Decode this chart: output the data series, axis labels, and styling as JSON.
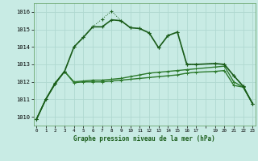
{
  "title": "Graphe pression niveau de la mer (hPa)",
  "background_color": "#c8ebe4",
  "grid_color": "#b0d8d0",
  "line_color_dark": "#1a5c1a",
  "line_color_med": "#2d7a2d",
  "xlim": [
    -0.3,
    23.3
  ],
  "ylim": [
    1009.5,
    1016.5
  ],
  "yticks": [
    1010,
    1011,
    1012,
    1013,
    1014,
    1015,
    1016
  ],
  "xtick_labels": [
    "0",
    "1",
    "2",
    "3",
    "4",
    "5",
    "6",
    "7",
    "8",
    "9",
    "10",
    "11",
    "12",
    "13",
    "14",
    "15",
    "16",
    "17",
    "",
    "19",
    "20",
    "21",
    "22",
    "23"
  ],
  "xtick_positions": [
    0,
    1,
    2,
    3,
    4,
    5,
    6,
    7,
    8,
    9,
    10,
    11,
    12,
    13,
    14,
    15,
    16,
    17,
    18,
    19,
    20,
    21,
    22,
    23
  ],
  "curve1_x": [
    0,
    1,
    2,
    3,
    4,
    5,
    6,
    7,
    8,
    9,
    10,
    11,
    12,
    13,
    14,
    15,
    16,
    17,
    19,
    20,
    21,
    22,
    23
  ],
  "curve1_y": [
    1009.85,
    1011.0,
    1011.9,
    1012.6,
    1014.0,
    1014.55,
    1015.15,
    1015.15,
    1015.55,
    1015.5,
    1015.1,
    1015.05,
    1014.8,
    1013.95,
    1014.65,
    1014.85,
    1013.0,
    1013.0,
    1013.05,
    1013.0,
    1012.35,
    1011.75,
    1010.75
  ],
  "curve2_x": [
    0,
    1,
    2,
    3,
    4,
    5,
    6,
    7,
    8,
    9,
    10,
    11,
    12,
    13,
    14,
    15,
    16,
    17,
    19,
    20,
    21,
    22,
    23
  ],
  "curve2_y": [
    1009.85,
    1011.0,
    1011.9,
    1012.6,
    1014.0,
    1014.55,
    1015.15,
    1015.6,
    1016.05,
    1015.5,
    1015.1,
    1015.05,
    1014.8,
    1013.95,
    1014.65,
    1014.85,
    1013.0,
    1013.0,
    1013.05,
    1013.0,
    1012.35,
    1011.75,
    1010.75
  ],
  "line3_x": [
    0,
    1,
    2,
    3,
    4,
    5,
    6,
    7,
    8,
    9,
    10,
    11,
    12,
    13,
    14,
    15,
    16,
    17,
    19,
    20,
    21,
    22,
    23
  ],
  "line3_y": [
    1009.85,
    1011.0,
    1011.95,
    1012.6,
    1012.0,
    1012.05,
    1012.1,
    1012.1,
    1012.15,
    1012.2,
    1012.3,
    1012.4,
    1012.5,
    1012.55,
    1012.6,
    1012.65,
    1012.7,
    1012.75,
    1012.85,
    1012.9,
    1012.0,
    1011.7,
    1010.75
  ],
  "line4_x": [
    0,
    1,
    2,
    3,
    4,
    5,
    6,
    7,
    8,
    9,
    10,
    11,
    12,
    13,
    14,
    15,
    16,
    17,
    19,
    20,
    21,
    22,
    23
  ],
  "line4_y": [
    1009.85,
    1011.0,
    1011.9,
    1012.6,
    1011.95,
    1012.0,
    1012.0,
    1012.0,
    1012.05,
    1012.1,
    1012.15,
    1012.2,
    1012.25,
    1012.3,
    1012.35,
    1012.4,
    1012.5,
    1012.55,
    1012.6,
    1012.65,
    1011.8,
    1011.7,
    1010.75
  ]
}
